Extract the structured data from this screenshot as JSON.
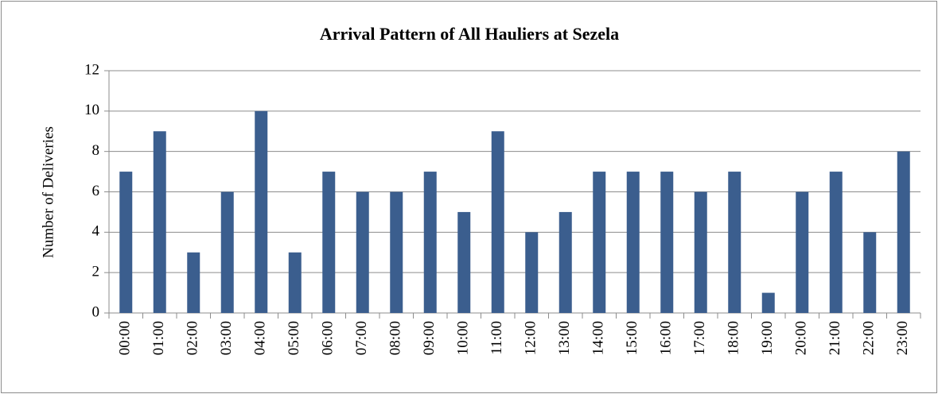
{
  "chart_data": {
    "type": "bar",
    "title": "Arrival Pattern of All Hauliers at Sezela",
    "ylabel": "Number of Deliveries",
    "categories": [
      "00:00",
      "01:00",
      "02:00",
      "03:00",
      "04:00",
      "05:00",
      "06:00",
      "07:00",
      "08:00",
      "09:00",
      "10:00",
      "11:00",
      "12:00",
      "13:00",
      "14:00",
      "15:00",
      "16:00",
      "17:00",
      "18:00",
      "19:00",
      "20:00",
      "21:00",
      "22:00",
      "23:00"
    ],
    "values": [
      7,
      9,
      3,
      6,
      10,
      3,
      7,
      6,
      6,
      7,
      5,
      9,
      4,
      5,
      7,
      7,
      7,
      6,
      7,
      1,
      6,
      7,
      4,
      8
    ],
    "color": "#3b5e8e",
    "ylim": [
      0,
      12
    ],
    "yticks": [
      0,
      2,
      4,
      6,
      8,
      10,
      12
    ],
    "grid": true
  }
}
